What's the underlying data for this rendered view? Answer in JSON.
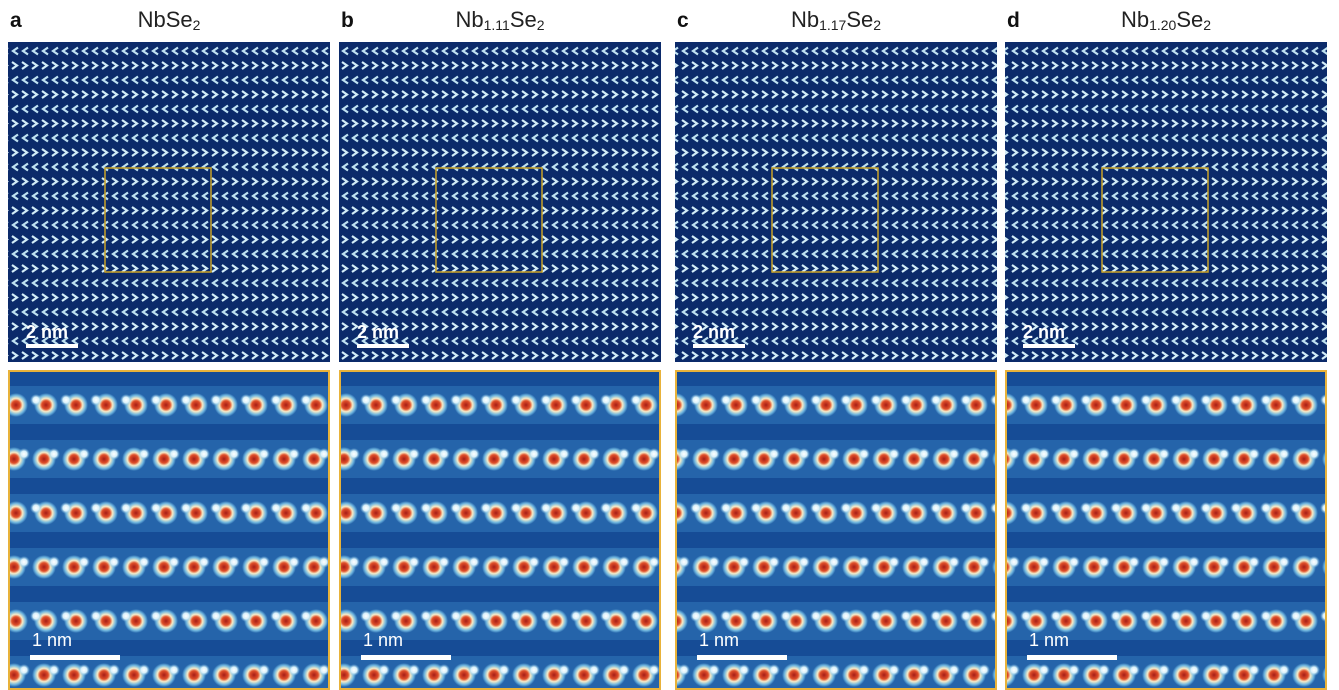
{
  "panels": [
    {
      "label": "a",
      "title": [
        {
          "text": "NbSe"
        },
        {
          "text": "2",
          "sub": true
        }
      ],
      "top_scale": "2 nm",
      "bottom_scale": "1 nm"
    },
    {
      "label": "b",
      "title": [
        {
          "text": "Nb"
        },
        {
          "text": "1.11",
          "sub": true
        },
        {
          "text": "Se"
        },
        {
          "text": "2",
          "sub": true
        }
      ],
      "top_scale": "2 nm",
      "bottom_scale": "1 nm"
    },
    {
      "label": "c",
      "title": [
        {
          "text": "Nb"
        },
        {
          "text": "1.17",
          "sub": true
        },
        {
          "text": "Se"
        },
        {
          "text": "2",
          "sub": true
        }
      ],
      "top_scale": "2 nm",
      "bottom_scale": "1 nm"
    },
    {
      "label": "d",
      "title": [
        {
          "text": "Nb"
        },
        {
          "text": "1.20",
          "sub": true
        },
        {
          "text": "Se"
        },
        {
          "text": "2",
          "sub": true
        }
      ],
      "top_scale": "2 nm",
      "bottom_scale": "1 nm"
    }
  ]
}
